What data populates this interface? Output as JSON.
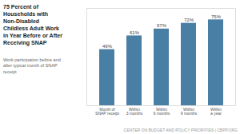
{
  "chart_data": {
    "type": "bar",
    "title": "75 Percent of\nHouseholds with\nNon-Disabled\nChildless Adult Work\nin Year Before or After\nReceiving SNAP",
    "subtitle": "Work participation before and\nafter typical month of SNAP\nreceipt",
    "caption": "CENTER ON BUDGET AND POLICY PRIORITIES | CBPP.ORG",
    "categories": [
      "Month of\nSNAP receipt",
      "Within\n3 months",
      "Within\n6 months",
      "Within\n9 months",
      "Within\na year"
    ],
    "values": [
      49,
      61,
      67,
      72,
      75
    ],
    "value_labels": [
      "49%",
      "61%",
      "67%",
      "72%",
      "75%"
    ],
    "color": "#4a7fa5",
    "ylim": [
      0,
      85
    ],
    "grid": false,
    "data_labels": true,
    "tick_labels": "x"
  }
}
